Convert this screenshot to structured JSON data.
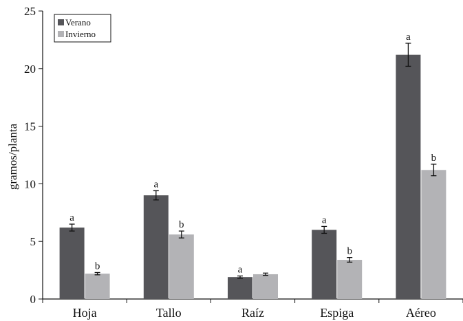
{
  "chart_data": {
    "type": "bar",
    "title": "",
    "xlabel": "",
    "ylabel": "gramos/planta",
    "ylim": [
      0,
      25
    ],
    "yticks": [
      0,
      5,
      10,
      15,
      20,
      25
    ],
    "grid": false,
    "legend_position": "top-left",
    "categories": [
      "Hoja",
      "Tallo",
      "Raíz",
      "Espiga",
      "Aéreo"
    ],
    "series": [
      {
        "name": "Verano",
        "color": "#555559",
        "values": [
          6.2,
          9.0,
          1.9,
          6.0,
          21.2
        ],
        "errors": [
          0.3,
          0.4,
          0.1,
          0.3,
          1.0
        ],
        "labels": [
          "a",
          "a",
          "a",
          "a",
          "a"
        ]
      },
      {
        "name": "Invierno",
        "color": "#b3b3b6",
        "values": [
          2.2,
          5.6,
          2.15,
          3.4,
          11.2
        ],
        "errors": [
          0.1,
          0.3,
          0.1,
          0.2,
          0.5
        ],
        "labels": [
          "b",
          "b",
          "",
          "b",
          "b"
        ]
      }
    ]
  }
}
